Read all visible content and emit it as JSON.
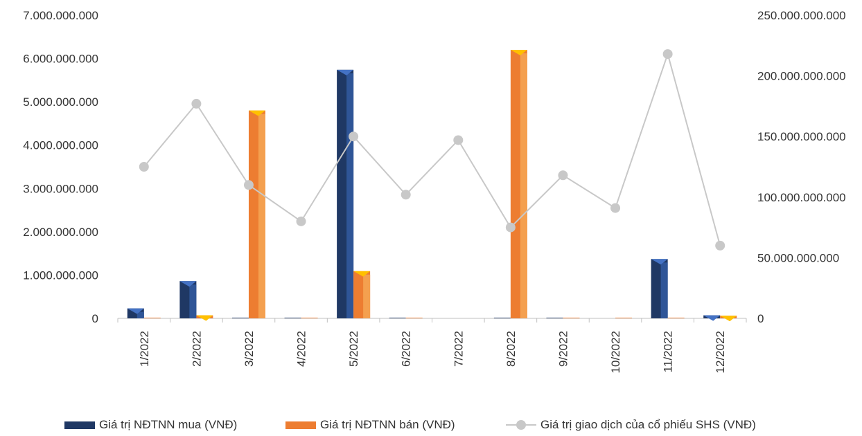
{
  "chart_data": {
    "type": "bar",
    "categories": [
      "1/2022",
      "2/2022",
      "3/2022",
      "4/2022",
      "5/2022",
      "6/2022",
      "7/2022",
      "8/2022",
      "9/2022",
      "10/2022",
      "11/2022",
      "12/2022"
    ],
    "series": [
      {
        "name": "Giá trị NĐTNN mua (VNĐ)",
        "type": "bar",
        "axis": "left",
        "color": "#1f3864",
        "values": [
          230000000,
          860000000,
          15000000,
          15000000,
          5740000000,
          15000000,
          0,
          15000000,
          15000000,
          0,
          1370000000,
          70000000
        ]
      },
      {
        "name": "Giá trị NĐTNN bán (VNĐ)",
        "type": "bar",
        "axis": "left",
        "color": "#ed7d31",
        "values": [
          15000000,
          70000000,
          4800000000,
          15000000,
          1090000000,
          15000000,
          0,
          6200000000,
          15000000,
          15000000,
          15000000,
          60000000
        ]
      },
      {
        "name": "Giá trị giao dịch của cổ phiếu SHS (VNĐ)",
        "type": "line",
        "axis": "right",
        "color": "#c8c8c8",
        "values": [
          125000000000,
          177000000000,
          110000000000,
          80000000000,
          150000000000,
          102000000000,
          147000000000,
          75000000000,
          118000000000,
          91000000000,
          218000000000,
          60000000000
        ]
      }
    ],
    "ylim_left": [
      0,
      7000000000
    ],
    "ylim_right": [
      0,
      250000000000
    ],
    "yticks_left": [
      "0",
      "1.000.000.000",
      "2.000.000.000",
      "3.000.000.000",
      "4.000.000.000",
      "5.000.000.000",
      "6.000.000.000",
      "7.000.000.000"
    ],
    "yticks_right": [
      "0",
      "50.000.000.000",
      "100.000.000.000",
      "150.000.000.000",
      "200.000.000.000",
      "250.000.000.000"
    ],
    "grid": false,
    "legend_position": "bottom",
    "title": "",
    "xlabel": "",
    "ylabel": ""
  }
}
